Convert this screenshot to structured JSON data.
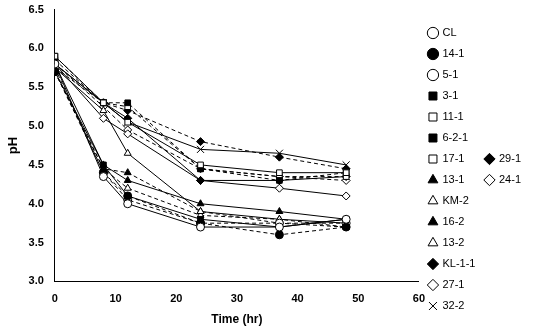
{
  "chart_data": {
    "type": "line",
    "x_label": "Time (hr)",
    "y_label": "pH",
    "x": [
      0,
      8,
      12,
      24,
      37,
      48
    ],
    "xlim": [
      0,
      60
    ],
    "xticks": [
      0,
      10,
      20,
      30,
      40,
      50,
      60
    ],
    "ylim": [
      3,
      6.5
    ],
    "yticks": [
      {
        "value": 3,
        "label": "3.0"
      },
      3.5,
      {
        "value": 4,
        "label": "4.0"
      },
      4.5,
      {
        "value": 5,
        "label": "5.0"
      },
      5.5,
      {
        "value": 6,
        "label": "6.0"
      },
      6.5
    ],
    "grid": false,
    "legend": "right",
    "series": [
      {
        "name": "CL",
        "color": "#000000",
        "marker": "circle-open",
        "line_style": "solid",
        "values": [
          5.8,
          4.35,
          4.0,
          3.7,
          3.7,
          3.8
        ]
      },
      {
        "name": "14-1",
        "color": "#000000",
        "marker": "circle-filled",
        "line_style": "dashed",
        "values": [
          5.7,
          4.4,
          4.1,
          3.75,
          3.6,
          3.7
        ]
      },
      {
        "name": "5-1",
        "color": "#000000",
        "marker": "circle-open",
        "line_style": "dashed",
        "values": [
          5.75,
          4.4,
          4.05,
          3.75,
          3.75,
          3.75
        ]
      },
      {
        "name": "3-1",
        "color": "#000000",
        "marker": "square-filled",
        "line_style": "solid",
        "values": [
          5.8,
          4.5,
          4.1,
          3.8,
          3.7,
          3.8
        ]
      },
      {
        "name": "11-1",
        "color": "#000000",
        "marker": "square-open",
        "line_style": "solid",
        "values": [
          5.9,
          5.3,
          5.05,
          4.5,
          4.4,
          4.4
        ]
      },
      {
        "name": "6-2-1",
        "color": "#000000",
        "marker": "square-filled",
        "line_style": "dashed",
        "values": [
          5.85,
          5.3,
          5.3,
          4.45,
          4.3,
          4.4
        ]
      },
      {
        "name": "17-1",
        "color": "#000000",
        "marker": "square-open",
        "line_style": "dashed",
        "values": [
          5.9,
          5.3,
          5.25,
          4.45,
          4.35,
          4.35
        ]
      },
      {
        "name": "13-1",
        "color": "#000000",
        "marker": "triangle-filled",
        "line_style": "solid",
        "values": [
          5.7,
          4.5,
          4.3,
          4.0,
          3.9,
          3.8
        ]
      },
      {
        "name": "KM-2",
        "color": "#000000",
        "marker": "triangle-open",
        "line_style": "solid",
        "values": [
          5.75,
          5.2,
          4.65,
          3.9,
          3.8,
          3.75
        ]
      },
      {
        "name": "16-2",
        "color": "#000000",
        "marker": "triangle-filled",
        "line_style": "dashed",
        "values": [
          5.7,
          4.45,
          4.4,
          3.9,
          3.75,
          3.7
        ]
      },
      {
        "name": "13-2",
        "color": "#000000",
        "marker": "triangle-open",
        "line_style": "dashed",
        "values": [
          5.7,
          4.45,
          4.2,
          3.85,
          3.8,
          3.7
        ]
      },
      {
        "name": "KL-1-1",
        "color": "#000000",
        "marker": "diamond-filled",
        "line_style": "solid",
        "values": [
          5.8,
          5.3,
          5.1,
          4.3,
          4.3,
          4.35
        ]
      },
      {
        "name": "27-1",
        "color": "#000000",
        "marker": "diamond-open",
        "line_style": "solid",
        "values": [
          5.8,
          5.1,
          4.9,
          4.3,
          4.2,
          4.1
        ]
      },
      {
        "name": "32-2",
        "color": "#000000",
        "marker": "x",
        "line_style": "solid",
        "values": [
          5.8,
          5.3,
          5.05,
          4.7,
          4.65,
          4.5
        ]
      },
      {
        "name": "29-1",
        "color": "#000000",
        "marker": "diamond-filled",
        "line_style": "dashed",
        "values": [
          5.75,
          5.3,
          5.2,
          4.8,
          4.6,
          4.45
        ]
      },
      {
        "name": "24-1",
        "color": "#000000",
        "marker": "diamond-open",
        "line_style": "dashed",
        "values": [
          5.8,
          5.25,
          4.95,
          4.45,
          4.35,
          4.3
        ]
      }
    ]
  }
}
